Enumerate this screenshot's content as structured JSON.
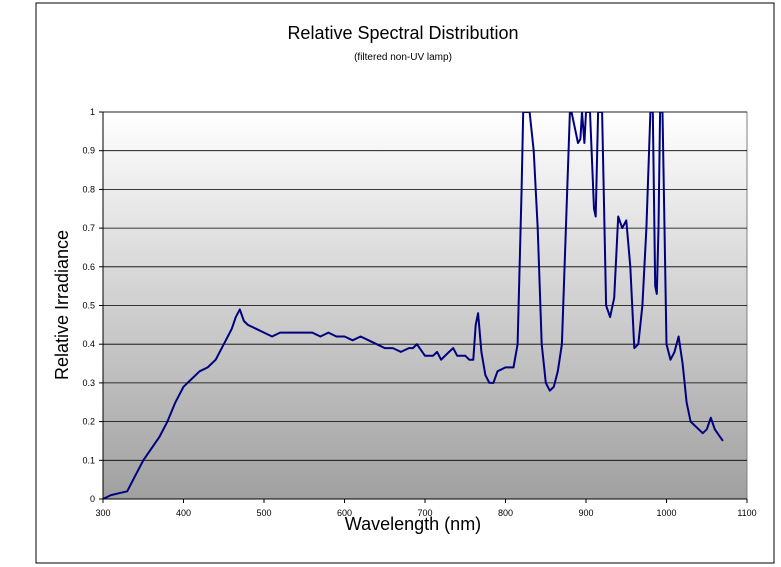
{
  "chart_data": {
    "type": "line",
    "title": "Relative Spectral Distribution",
    "subtitle": "(filtered non-UV lamp)",
    "xlabel": "Wavelength (nm)",
    "ylabel": "Relative Irradiance",
    "xlim": [
      300,
      1100
    ],
    "ylim": [
      0,
      1
    ],
    "x_ticks": [
      "300",
      "400",
      "500",
      "600",
      "700",
      "800",
      "900",
      "1000",
      "1100"
    ],
    "y_ticks": [
      "0",
      "0.1",
      "0.2",
      "0.3",
      "0.4",
      "0.5",
      "0.6",
      "0.7",
      "0.8",
      "0.9",
      "1"
    ],
    "grid": "horizontal",
    "line_color": "#000080",
    "plot_background": "gradient white-to-gray",
    "series": [
      {
        "x": [
          300,
          310,
          320,
          330,
          340,
          350,
          360,
          370,
          380,
          390,
          400,
          410,
          420,
          430,
          440,
          450,
          455,
          460,
          465,
          470,
          475,
          480,
          490,
          500,
          510,
          520,
          530,
          540,
          550,
          560,
          570,
          580,
          590,
          600,
          610,
          620,
          630,
          640,
          650,
          660,
          670,
          680,
          685,
          690,
          700,
          710,
          715,
          720,
          730,
          735,
          740,
          750,
          755,
          760,
          763,
          766,
          770,
          775,
          780,
          785,
          790,
          800,
          810,
          815,
          820,
          822,
          830,
          835,
          840,
          845,
          850,
          855,
          860,
          865,
          870,
          875,
          880,
          882,
          890,
          893,
          895,
          898,
          900,
          905,
          910,
          912,
          915,
          920,
          925,
          930,
          935,
          940,
          945,
          950,
          955,
          960,
          965,
          970,
          975,
          980,
          983,
          986,
          988,
          990,
          992,
          995,
          1000,
          1005,
          1010,
          1015,
          1020,
          1025,
          1030,
          1040,
          1045,
          1050,
          1055,
          1060,
          1070
        ],
        "y": [
          0.0,
          0.01,
          0.015,
          0.02,
          0.06,
          0.1,
          0.13,
          0.16,
          0.2,
          0.25,
          0.29,
          0.31,
          0.33,
          0.34,
          0.36,
          0.4,
          0.42,
          0.44,
          0.47,
          0.49,
          0.46,
          0.45,
          0.44,
          0.43,
          0.42,
          0.43,
          0.43,
          0.43,
          0.43,
          0.43,
          0.42,
          0.43,
          0.42,
          0.42,
          0.41,
          0.42,
          0.41,
          0.4,
          0.39,
          0.39,
          0.38,
          0.39,
          0.39,
          0.4,
          0.37,
          0.37,
          0.38,
          0.36,
          0.38,
          0.39,
          0.37,
          0.37,
          0.36,
          0.36,
          0.45,
          0.48,
          0.38,
          0.32,
          0.3,
          0.3,
          0.33,
          0.34,
          0.34,
          0.4,
          0.8,
          1.0,
          1.0,
          0.9,
          0.7,
          0.4,
          0.3,
          0.28,
          0.29,
          0.33,
          0.4,
          0.7,
          1.0,
          1.0,
          0.92,
          0.93,
          1.0,
          0.92,
          1.0,
          1.0,
          0.75,
          0.73,
          1.0,
          1.0,
          0.5,
          0.47,
          0.52,
          0.73,
          0.7,
          0.72,
          0.6,
          0.39,
          0.4,
          0.5,
          0.7,
          1.0,
          1.0,
          0.55,
          0.53,
          0.7,
          1.0,
          1.0,
          0.4,
          0.36,
          0.38,
          0.42,
          0.35,
          0.25,
          0.2,
          0.18,
          0.17,
          0.18,
          0.21,
          0.18,
          0.15
        ]
      }
    ]
  }
}
